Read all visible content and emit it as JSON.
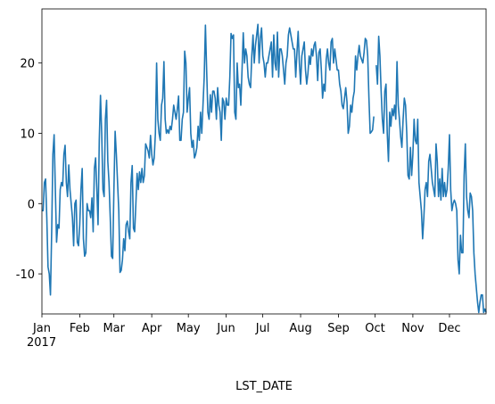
{
  "chart_data": {
    "type": "line",
    "xlabel": "LST_DATE",
    "year_label": "2017",
    "color": "#1f77b4",
    "series": [
      {
        "values": [
          -1,
          -1,
          3,
          3.5,
          -2,
          -9,
          -10,
          -13,
          -4,
          7,
          9.8,
          2,
          -5.5,
          -3,
          -3.5,
          2,
          3,
          2.5,
          7,
          8.3,
          3,
          1,
          5.5,
          2,
          0,
          -2,
          -6,
          0,
          0.5,
          -5.5,
          -6,
          -3,
          2,
          5,
          -5,
          -7.5,
          -7,
          0,
          -1,
          -1,
          -2,
          0.8,
          -4,
          5,
          6.5,
          2,
          -3,
          9,
          15.4,
          10,
          2,
          1,
          12,
          14.7,
          6,
          3,
          -2,
          -7.5,
          -7.8,
          2,
          10.3,
          7,
          3,
          -1,
          -9.8,
          -9.5,
          -8,
          -5,
          -6.7,
          -3,
          -2.5,
          -4,
          -5,
          3,
          5.4,
          -3.5,
          -4,
          0,
          4.3,
          2,
          4.5,
          3,
          5,
          3,
          4,
          8.5,
          8,
          7.5,
          6.5,
          9.7,
          7,
          5.5,
          6.5,
          10,
          20,
          12,
          10,
          9,
          14,
          15,
          20.2,
          12,
          10,
          10.5,
          10,
          11,
          10.5,
          12,
          14,
          13,
          12,
          13.5,
          15.3,
          9,
          9,
          12,
          13,
          21.7,
          20,
          13,
          15,
          16.5,
          10,
          8,
          9,
          6.5,
          7,
          8,
          11,
          9,
          13,
          10,
          14,
          18,
          25.4,
          19,
          13,
          12,
          15.5,
          13,
          16,
          16,
          15,
          12,
          16.5,
          14,
          13,
          9,
          15,
          14.5,
          12,
          15,
          14,
          14,
          18,
          24.2,
          23.5,
          24,
          13,
          12,
          20,
          16.5,
          17,
          14,
          19,
          24.3,
          20,
          22,
          21,
          18,
          17,
          16.5,
          21,
          24,
          20,
          22.5,
          24,
          25.5,
          20,
          23.5,
          25,
          21,
          20,
          18,
          20,
          20,
          21,
          22,
          23,
          18,
          24,
          20,
          19,
          24.4,
          18,
          22,
          22,
          21,
          19,
          17,
          20,
          21,
          24,
          25,
          24,
          23,
          22,
          22,
          18,
          21.5,
          24.5,
          20,
          17,
          21,
          22,
          23,
          19,
          17,
          18.5,
          21,
          19.8,
          22,
          21,
          22.5,
          23,
          21,
          17.5,
          21.5,
          22,
          19,
          15,
          17,
          16,
          20.5,
          22,
          20,
          19,
          23,
          23.5,
          20,
          22,
          20.5,
          19,
          19,
          17,
          16,
          14,
          13.5,
          15,
          16.5,
          14.5,
          10,
          11,
          14,
          13,
          15,
          16,
          21,
          19,
          21,
          22.5,
          21,
          20.5,
          20,
          21.5,
          23.5,
          23.2,
          21,
          15,
          10,
          10.2,
          10.5,
          12.4,
          null,
          19.7,
          17,
          23.8,
          21,
          16,
          12,
          10,
          16,
          17,
          10,
          6,
          13,
          11,
          13.5,
          12.5,
          14,
          12,
          20.2,
          14,
          12,
          9.5,
          8,
          12,
          15,
          14,
          10,
          4,
          3.5,
          8,
          4,
          7,
          12,
          9,
          8.5,
          12,
          3,
          1,
          -1,
          -5,
          -2,
          2,
          3,
          1,
          6,
          7,
          5,
          3,
          2,
          1,
          8.5,
          6,
          1,
          3.5,
          0.5,
          5,
          1,
          3,
          1,
          2,
          5,
          9.8,
          2,
          -1,
          0,
          0.5,
          0,
          -1,
          -8,
          -10,
          -4.5,
          -7,
          -7,
          4,
          8.5,
          1,
          -1,
          -2,
          1.5,
          1,
          -1,
          -7,
          -10,
          -12,
          -14,
          -15.5,
          -14,
          -13,
          -13,
          -15.5,
          -15,
          -15.5
        ]
      }
    ],
    "xlim": [
      0,
      364
    ],
    "xticks": [
      {
        "value": 0,
        "label": "Jan"
      },
      {
        "value": 31,
        "label": "Feb"
      },
      {
        "value": 59,
        "label": "Mar"
      },
      {
        "value": 90,
        "label": "Apr"
      },
      {
        "value": 120,
        "label": "May"
      },
      {
        "value": 151,
        "label": "Jun"
      },
      {
        "value": 181,
        "label": "Jul"
      },
      {
        "value": 212,
        "label": "Aug"
      },
      {
        "value": 243,
        "label": "Sep"
      },
      {
        "value": 273,
        "label": "Oct"
      },
      {
        "value": 304,
        "label": "Nov"
      },
      {
        "value": 334,
        "label": "Dec"
      }
    ],
    "ylim": [
      -15.7,
      27.7
    ],
    "yticks": [
      -10,
      0,
      10,
      20
    ]
  }
}
